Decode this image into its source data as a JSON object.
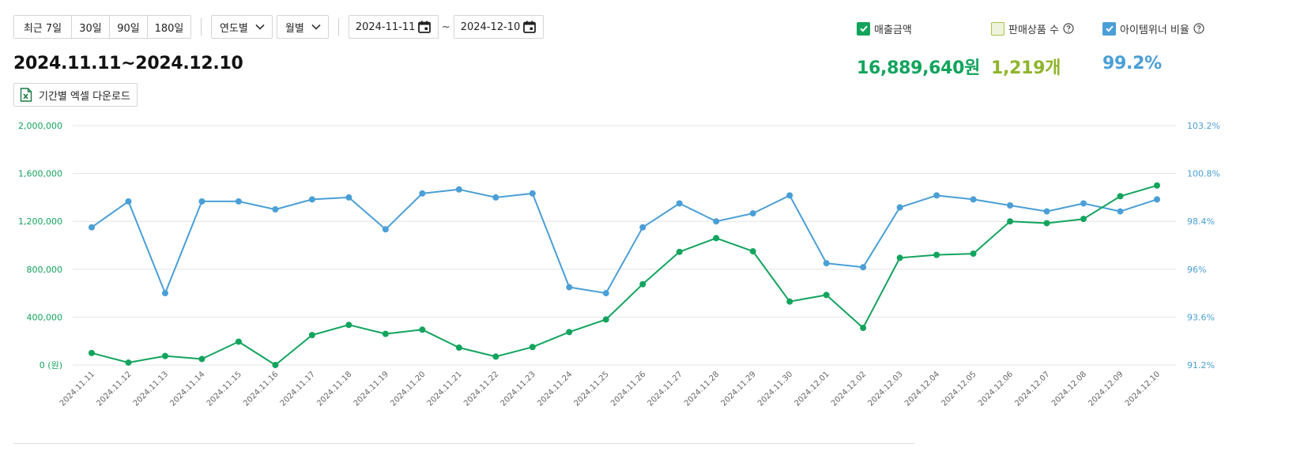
{
  "toolbar": {
    "period_buttons": [
      "최근 7일",
      "30일",
      "90일",
      "180일"
    ],
    "year_select": "연도별",
    "month_select": "월별",
    "start_date": "2024-11-11",
    "end_date": "2024-12-10",
    "tilde": "~"
  },
  "heading": {
    "range": "2024.11.11~2024.12.10",
    "excel_download": "기간별 엑셀 다운로드"
  },
  "metrics": [
    {
      "label": "매출금액",
      "value": "16,889,640원",
      "checked": true,
      "color": "#12a45d",
      "checkbox_color": "#12a45d"
    },
    {
      "label": "판매상품 수",
      "value": "1,219개",
      "checked": false,
      "color": "#8fb52c",
      "checkbox_color": "#a8c24a"
    },
    {
      "label": "아이템위너 비율",
      "value": "99.2%",
      "checked": true,
      "color": "#4a9fd6",
      "checkbox_color": "#4a9fd6"
    }
  ],
  "colors": {
    "sales": "#12a45d",
    "winner": "#4a9fd6",
    "grid": "#e4e4e4",
    "tick": "#666666"
  },
  "chart_data": {
    "type": "line",
    "x": [
      "2024.11.11",
      "2024.11.12",
      "2024.11.13",
      "2024.11.14",
      "2024.11.15",
      "2024.11.16",
      "2024.11.17",
      "2024.11.18",
      "2024.11.19",
      "2024.11.20",
      "2024.11.21",
      "2024.11.22",
      "2024.11.23",
      "2024.11.24",
      "2024.11.25",
      "2024.11.26",
      "2024.11.27",
      "2024.11.28",
      "2024.11.29",
      "2024.11.30",
      "2024.12.01",
      "2024.12.02",
      "2024.12.03",
      "2024.12.04",
      "2024.12.05",
      "2024.12.06",
      "2024.12.07",
      "2024.12.08",
      "2024.12.09",
      "2024.12.10"
    ],
    "left_axis": {
      "min": 0,
      "max": 2000000,
      "ticks": [
        0,
        400000,
        800000,
        1200000,
        1600000,
        2000000
      ],
      "tick_labels": [
        "0 (원)",
        "400,000",
        "800,000",
        "1,200,000",
        "1,600,000",
        "2,000,000"
      ]
    },
    "right_axis": {
      "min": 91.2,
      "max": 103.2,
      "ticks": [
        91.2,
        93.6,
        96,
        98.4,
        100.8,
        103.2
      ],
      "tick_labels": [
        "91.2%",
        "93.6%",
        "96%",
        "98.4%",
        "100.8%",
        "103.2%"
      ]
    },
    "grid": true,
    "series": [
      {
        "axis": "left",
        "values": [
          100000,
          20000,
          75000,
          50000,
          195000,
          0,
          250000,
          335000,
          260000,
          295000,
          145000,
          70000,
          150000,
          275000,
          380000,
          675000,
          945000,
          1060000,
          950000,
          530000,
          585000,
          310000,
          895000,
          920000,
          930000,
          1200000,
          1185000,
          1220000,
          1410000,
          1500000
        ]
      },
      {
        "axis": "right",
        "values": [
          98.1,
          99.4,
          94.8,
          99.4,
          99.4,
          99.0,
          99.5,
          99.6,
          98.0,
          99.8,
          100.0,
          99.6,
          99.8,
          95.1,
          94.8,
          98.1,
          99.3,
          98.4,
          98.8,
          99.7,
          96.3,
          96.1,
          99.1,
          99.7,
          99.5,
          99.2,
          98.9,
          99.3,
          98.9,
          99.5
        ]
      }
    ]
  }
}
